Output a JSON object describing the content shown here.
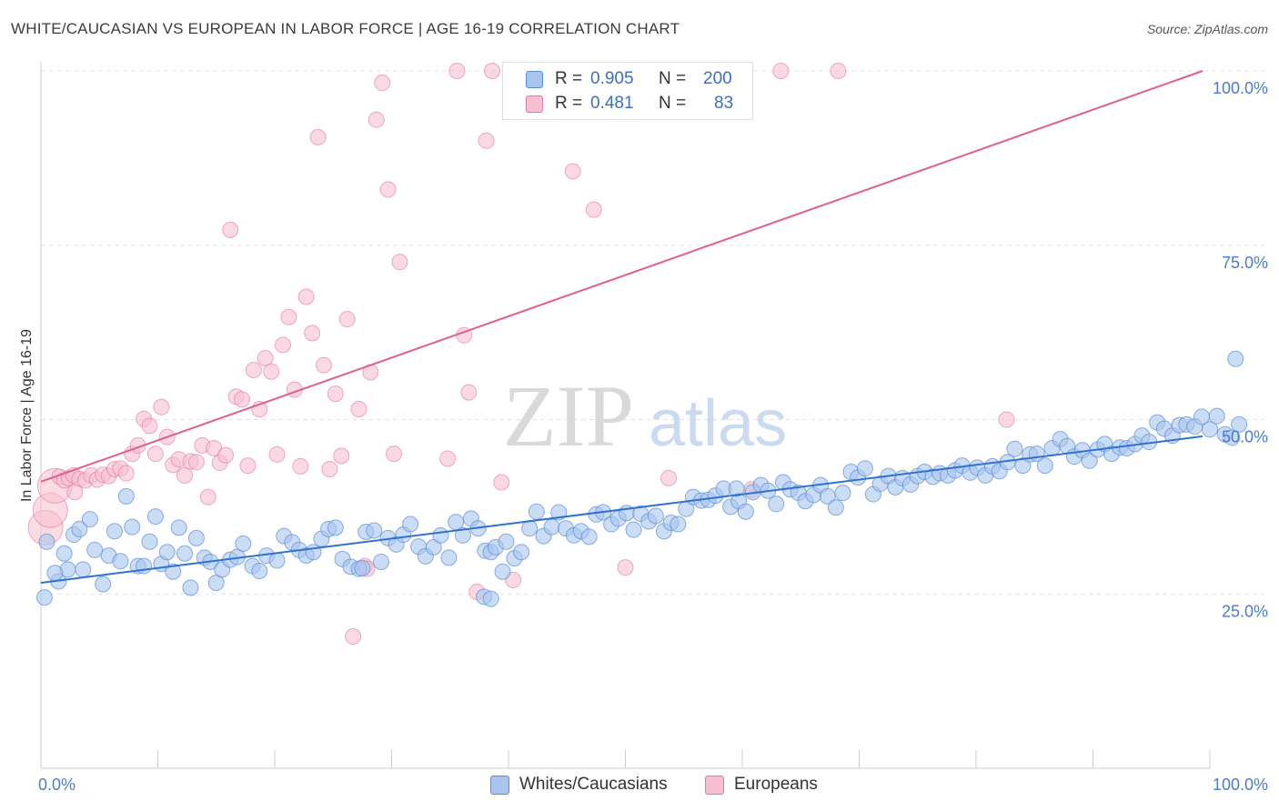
{
  "title": "WHITE/CAUCASIAN VS EUROPEAN IN LABOR FORCE | AGE 16-19 CORRELATION CHART",
  "source": "Source: ZipAtlas.com",
  "watermark": {
    "part1": "ZIP",
    "part2": "atlas"
  },
  "legend": {
    "rows": [
      {
        "r_label": "R =",
        "r_value": "0.905",
        "n_label": "N =",
        "n_value": "200",
        "color": "#a9c4ef",
        "border": "#5b8fd6"
      },
      {
        "r_label": "R =",
        "r_value": "0.481",
        "n_label": "N =",
        "n_value": "83",
        "color": "#f7bfd0",
        "border": "#e3779a"
      }
    ]
  },
  "bottom_legend": [
    {
      "label": "Whites/Caucasians",
      "color": "#a9c4ef",
      "border": "#5b8fd6"
    },
    {
      "label": "Europeans",
      "color": "#f7bfd0",
      "border": "#e3779a"
    }
  ],
  "chart_data": {
    "type": "scatter",
    "title": "WHITE/CAUCASIAN VS EUROPEAN IN LABOR FORCE | AGE 16-19 CORRELATION CHART",
    "xlabel": "",
    "ylabel": "In Labor Force | Age 16-19",
    "xlim": [
      0,
      100
    ],
    "ylim": [
      0,
      100
    ],
    "x_tick_labels": [
      "0.0%",
      "100.0%"
    ],
    "y_tick_labels": [
      "25.0%",
      "50.0%",
      "75.0%",
      "100.0%"
    ],
    "y_ticks": [
      25,
      50,
      75,
      100
    ],
    "grid": true,
    "legend_placement": "top-center",
    "series": [
      {
        "name": "Whites/Caucasians",
        "color": "#5b8fd6",
        "fill": "#a9c4ef",
        "R": 0.905,
        "N": 200,
        "trend": {
          "x": [
            0,
            100
          ],
          "y": [
            26.6,
            47.6
          ]
        },
        "points": [
          [
            0.3,
            24.5
          ],
          [
            0.5,
            32.5
          ],
          [
            1.5,
            26.8
          ],
          [
            2,
            30.8
          ],
          [
            2.3,
            28.5
          ],
          [
            2.8,
            33.5
          ],
          [
            3.3,
            34.3
          ],
          [
            3.6,
            28.5
          ],
          [
            4.2,
            35.7
          ],
          [
            4.6,
            31.3
          ],
          [
            5.3,
            26.4
          ],
          [
            5.8,
            30.5
          ],
          [
            6.3,
            34.0
          ],
          [
            6.8,
            29.7
          ],
          [
            7.3,
            39.0
          ],
          [
            7.8,
            34.6
          ],
          [
            8.3,
            29.0
          ],
          [
            8.8,
            29.0
          ],
          [
            9.3,
            32.5
          ],
          [
            9.8,
            36.1
          ],
          [
            10.3,
            29.3
          ],
          [
            10.8,
            31.0
          ],
          [
            11.3,
            28.2
          ],
          [
            11.8,
            34.5
          ],
          [
            12.3,
            30.8
          ],
          [
            12.8,
            25.9
          ],
          [
            13.3,
            33.0
          ],
          [
            14.0,
            30.2
          ],
          [
            14.5,
            29.6
          ],
          [
            15.0,
            26.6
          ],
          [
            15.5,
            28.5
          ],
          [
            16.2,
            29.9
          ],
          [
            16.8,
            30.3
          ],
          [
            17.3,
            32.2
          ],
          [
            18.1,
            29.0
          ],
          [
            18.7,
            28.3
          ],
          [
            19.3,
            30.5
          ],
          [
            20.2,
            29.8
          ],
          [
            20.8,
            33.3
          ],
          [
            21.5,
            32.4
          ],
          [
            22.1,
            31.3
          ],
          [
            22.7,
            30.5
          ],
          [
            23.3,
            31.0
          ],
          [
            24.0,
            32.9
          ],
          [
            24.6,
            34.3
          ],
          [
            25.2,
            34.5
          ],
          [
            25.8,
            30.0
          ],
          [
            26.5,
            28.9
          ],
          [
            27.2,
            28.6
          ],
          [
            27.8,
            33.9
          ],
          [
            28.5,
            34.1
          ],
          [
            29.1,
            29.6
          ],
          [
            29.7,
            33.0
          ],
          [
            30.4,
            32.1
          ],
          [
            31.0,
            33.5
          ],
          [
            31.6,
            35.0
          ],
          [
            32.3,
            31.8
          ],
          [
            32.9,
            30.4
          ],
          [
            33.6,
            31.7
          ],
          [
            34.2,
            33.4
          ],
          [
            34.9,
            30.2
          ],
          [
            35.5,
            35.3
          ],
          [
            36.1,
            33.4
          ],
          [
            36.8,
            35.8
          ],
          [
            37.4,
            34.4
          ],
          [
            38.0,
            31.2
          ],
          [
            38.5,
            31.0
          ],
          [
            38.9,
            31.7
          ],
          [
            39.5,
            28.2
          ],
          [
            39.8,
            32.5
          ],
          [
            40.5,
            30.1
          ],
          [
            41.1,
            31.0
          ],
          [
            41.8,
            34.4
          ],
          [
            42.4,
            36.8
          ],
          [
            43.0,
            33.3
          ],
          [
            43.7,
            34.6
          ],
          [
            44.3,
            36.7
          ],
          [
            44.9,
            34.4
          ],
          [
            45.6,
            33.4
          ],
          [
            46.2,
            34.0
          ],
          [
            46.9,
            33.2
          ],
          [
            47.5,
            36.4
          ],
          [
            48.1,
            36.7
          ],
          [
            48.8,
            35.0
          ],
          [
            49.4,
            35.8
          ],
          [
            50.1,
            36.6
          ],
          [
            50.7,
            34.2
          ],
          [
            51.3,
            36.5
          ],
          [
            52.0,
            35.4
          ],
          [
            52.6,
            36.2
          ],
          [
            53.3,
            34.0
          ],
          [
            53.9,
            35.2
          ],
          [
            54.5,
            35.0
          ],
          [
            55.2,
            37.2
          ],
          [
            55.8,
            38.9
          ],
          [
            56.5,
            38.4
          ],
          [
            57.1,
            38.5
          ],
          [
            57.7,
            39.1
          ],
          [
            58.4,
            40.1
          ],
          [
            59.0,
            37.5
          ],
          [
            59.7,
            38.3
          ],
          [
            60.3,
            36.8
          ],
          [
            60.9,
            39.6
          ],
          [
            61.6,
            40.6
          ],
          [
            62.2,
            39.8
          ],
          [
            62.9,
            37.9
          ],
          [
            63.5,
            41.0
          ],
          [
            64.1,
            40.0
          ],
          [
            64.8,
            39.5
          ],
          [
            65.4,
            38.3
          ],
          [
            66.1,
            39.2
          ],
          [
            66.7,
            40.6
          ],
          [
            67.3,
            39.0
          ],
          [
            68.0,
            37.4
          ],
          [
            68.6,
            39.5
          ],
          [
            69.3,
            42.5
          ],
          [
            69.9,
            41.7
          ],
          [
            70.5,
            43.0
          ],
          [
            71.2,
            39.3
          ],
          [
            71.8,
            40.8
          ],
          [
            72.5,
            41.9
          ],
          [
            73.1,
            40.3
          ],
          [
            73.7,
            41.6
          ],
          [
            74.4,
            40.7
          ],
          [
            75.0,
            41.9
          ],
          [
            75.6,
            42.5
          ],
          [
            76.3,
            41.8
          ],
          [
            76.9,
            42.3
          ],
          [
            77.6,
            42.0
          ],
          [
            78.2,
            42.7
          ],
          [
            78.8,
            43.4
          ],
          [
            79.5,
            42.4
          ],
          [
            80.1,
            43.1
          ],
          [
            80.8,
            42.0
          ],
          [
            81.4,
            43.3
          ],
          [
            82.0,
            42.6
          ],
          [
            82.7,
            43.9
          ],
          [
            83.3,
            45.8
          ],
          [
            84.0,
            43.4
          ],
          [
            84.6,
            45.0
          ],
          [
            85.2,
            45.1
          ],
          [
            85.9,
            43.4
          ],
          [
            86.5,
            45.9
          ],
          [
            87.2,
            47.2
          ],
          [
            87.8,
            46.2
          ],
          [
            88.4,
            44.7
          ],
          [
            89.1,
            45.6
          ],
          [
            89.7,
            44.1
          ],
          [
            90.4,
            45.7
          ],
          [
            91.0,
            46.5
          ],
          [
            91.6,
            45.1
          ],
          [
            92.3,
            46.0
          ],
          [
            92.9,
            45.9
          ],
          [
            93.6,
            46.5
          ],
          [
            94.2,
            47.7
          ],
          [
            94.8,
            46.8
          ],
          [
            95.5,
            49.6
          ],
          [
            96.1,
            48.7
          ],
          [
            96.8,
            47.7
          ],
          [
            97.4,
            49.2
          ],
          [
            98.0,
            49.3
          ],
          [
            98.7,
            49.0
          ],
          [
            99.3,
            50.4
          ],
          [
            100.0,
            48.6
          ],
          [
            100.6,
            50.5
          ],
          [
            101.3,
            47.9
          ],
          [
            101.9,
            47.4
          ],
          [
            102.5,
            49.3
          ],
          [
            102.2,
            58.7
          ],
          [
            59.5,
            40.1
          ],
          [
            37.9,
            24.6
          ],
          [
            38.5,
            24.3
          ],
          [
            27.5,
            28.7
          ],
          [
            1.2,
            28.0
          ]
        ]
      },
      {
        "name": "Europeans",
        "color": "#e3779a",
        "fill": "#f7bfd0",
        "R": 0.481,
        "N": 83,
        "trend": {
          "x": [
            0,
            100
          ],
          "y": [
            41.1,
            100.0
          ]
        },
        "points": [
          [
            0.4,
            34.5
          ],
          [
            0.8,
            37.0
          ],
          [
            1.2,
            40.5
          ],
          [
            1.6,
            41.8
          ],
          [
            2.0,
            41.3
          ],
          [
            2.4,
            41.6
          ],
          [
            2.8,
            42.0
          ],
          [
            3.3,
            41.5
          ],
          [
            3.8,
            41.3
          ],
          [
            4.3,
            42.0
          ],
          [
            4.8,
            41.4
          ],
          [
            5.3,
            42.1
          ],
          [
            5.8,
            41.9
          ],
          [
            6.3,
            42.9
          ],
          [
            6.8,
            43.0
          ],
          [
            7.3,
            42.3
          ],
          [
            7.8,
            45.1
          ],
          [
            8.3,
            46.3
          ],
          [
            8.8,
            50.1
          ],
          [
            9.3,
            49.1
          ],
          [
            9.8,
            45.1
          ],
          [
            10.3,
            51.8
          ],
          [
            10.8,
            47.5
          ],
          [
            11.3,
            43.5
          ],
          [
            11.8,
            44.3
          ],
          [
            12.3,
            42.0
          ],
          [
            12.8,
            44.0
          ],
          [
            13.3,
            43.9
          ],
          [
            13.8,
            46.3
          ],
          [
            14.3,
            38.9
          ],
          [
            14.8,
            45.9
          ],
          [
            15.3,
            43.8
          ],
          [
            15.8,
            44.9
          ],
          [
            16.2,
            77.2
          ],
          [
            16.7,
            53.3
          ],
          [
            17.2,
            52.9
          ],
          [
            17.7,
            43.4
          ],
          [
            18.2,
            57.1
          ],
          [
            18.7,
            51.5
          ],
          [
            19.2,
            58.8
          ],
          [
            19.7,
            56.9
          ],
          [
            20.2,
            45.0
          ],
          [
            20.7,
            60.7
          ],
          [
            21.2,
            64.7
          ],
          [
            21.7,
            54.3
          ],
          [
            22.2,
            43.3
          ],
          [
            22.7,
            67.6
          ],
          [
            23.2,
            62.4
          ],
          [
            23.7,
            90.5
          ],
          [
            24.2,
            57.8
          ],
          [
            24.7,
            42.9
          ],
          [
            25.2,
            53.7
          ],
          [
            25.7,
            44.8
          ],
          [
            26.2,
            64.4
          ],
          [
            26.7,
            18.9
          ],
          [
            27.2,
            51.5
          ],
          [
            27.7,
            29.0
          ],
          [
            28.2,
            56.8
          ],
          [
            28.7,
            93.0
          ],
          [
            29.2,
            98.3
          ],
          [
            29.7,
            83.0
          ],
          [
            30.2,
            45.1
          ],
          [
            30.7,
            72.6
          ],
          [
            34.8,
            44.4
          ],
          [
            35.6,
            100.0
          ],
          [
            36.2,
            62.1
          ],
          [
            36.6,
            53.9
          ],
          [
            37.3,
            25.3
          ],
          [
            38.1,
            90.0
          ],
          [
            38.6,
            100.0
          ],
          [
            39.4,
            41.0
          ],
          [
            40.4,
            27.0
          ],
          [
            45.5,
            85.6
          ],
          [
            47.3,
            80.1
          ],
          [
            50.0,
            28.8
          ],
          [
            53.7,
            41.6
          ],
          [
            56.3,
            100.0
          ],
          [
            60.8,
            40.0
          ],
          [
            63.3,
            100.0
          ],
          [
            68.2,
            100.0
          ],
          [
            82.6,
            50.0
          ],
          [
            27.9,
            28.6
          ],
          [
            2.9,
            39.6
          ]
        ]
      }
    ]
  }
}
